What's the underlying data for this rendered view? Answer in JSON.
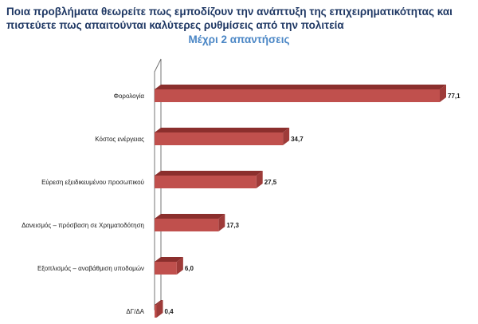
{
  "chart_data": {
    "type": "bar",
    "orientation": "horizontal",
    "title": "Ποια προβλήματα θεωρείτε πως εμποδίζουν την ανάπτυξη της επιχειρηματικότητας και πιστεύετε πως απαιτούνται καλύτερες ρυθμίσεις από την πολιτεία",
    "subtitle": "Μέχρι 2 απαντήσεις",
    "categories": [
      "Φορολογία",
      "Κόστος ενέργειας",
      "Εύρεση εξειδικευμένου προσωπικού",
      "Δανεισμός – πρόσβαση σε Χρηματοδότηση",
      "Εξοπλισμός – αναβάθμιση υποδομών",
      "ΔΓ/ΔΑ"
    ],
    "values": [
      77.1,
      34.7,
      27.5,
      17.3,
      6.0,
      0.4
    ],
    "value_labels": [
      "77,1",
      "34,7",
      "27,5",
      "17,3",
      "6,0",
      "0,4"
    ],
    "xlim": [
      0,
      80
    ],
    "grid": false,
    "legend": "none",
    "colors": {
      "bar_front": "#c0504d",
      "bar_top": "#8b2f2d",
      "title": "#1f3864",
      "subtitle": "#4a86c5"
    }
  }
}
